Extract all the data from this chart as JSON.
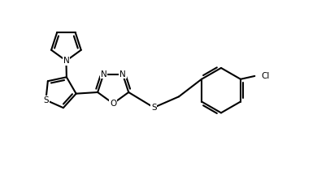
{
  "background": "#ffffff",
  "line_color": "#000000",
  "line_width": 1.5,
  "font_size": 7.5,
  "figsize": [
    3.9,
    2.31
  ],
  "dpi": 100,
  "xlim": [
    0,
    10
  ],
  "ylim": [
    0,
    6
  ]
}
